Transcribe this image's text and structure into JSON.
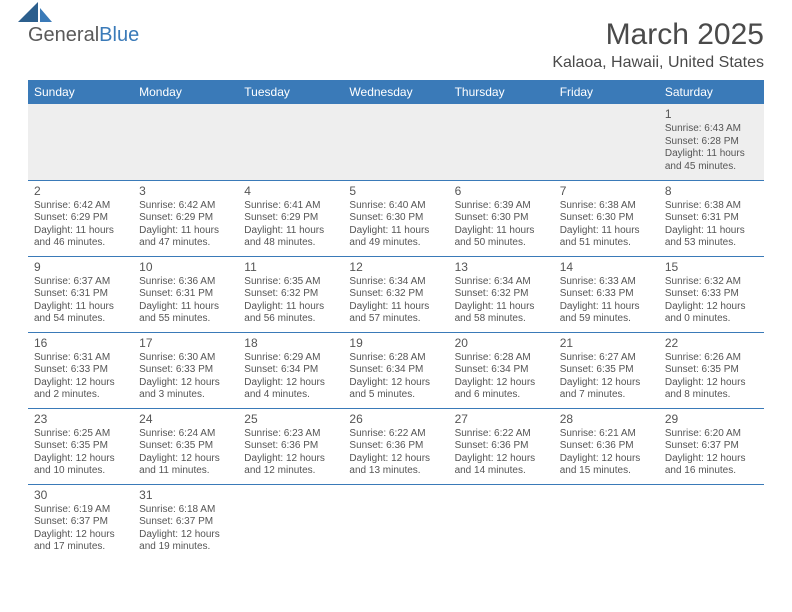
{
  "brand": {
    "part1": "General",
    "part2": "Blue"
  },
  "title": "March 2025",
  "location": "Kalaoa, Hawaii, United States",
  "colors": {
    "header_bg": "#3a7ab8",
    "header_text": "#ffffff",
    "cell_text": "#555555",
    "empty_bg": "#eeeeee",
    "border": "#3a7ab8",
    "title_text": "#4a4a4a"
  },
  "day_headers": [
    "Sunday",
    "Monday",
    "Tuesday",
    "Wednesday",
    "Thursday",
    "Friday",
    "Saturday"
  ],
  "weeks": [
    [
      null,
      null,
      null,
      null,
      null,
      null,
      {
        "n": "1",
        "sr": "Sunrise: 6:43 AM",
        "ss": "Sunset: 6:28 PM",
        "dl": "Daylight: 11 hours and 45 minutes."
      }
    ],
    [
      {
        "n": "2",
        "sr": "Sunrise: 6:42 AM",
        "ss": "Sunset: 6:29 PM",
        "dl": "Daylight: 11 hours and 46 minutes."
      },
      {
        "n": "3",
        "sr": "Sunrise: 6:42 AM",
        "ss": "Sunset: 6:29 PM",
        "dl": "Daylight: 11 hours and 47 minutes."
      },
      {
        "n": "4",
        "sr": "Sunrise: 6:41 AM",
        "ss": "Sunset: 6:29 PM",
        "dl": "Daylight: 11 hours and 48 minutes."
      },
      {
        "n": "5",
        "sr": "Sunrise: 6:40 AM",
        "ss": "Sunset: 6:30 PM",
        "dl": "Daylight: 11 hours and 49 minutes."
      },
      {
        "n": "6",
        "sr": "Sunrise: 6:39 AM",
        "ss": "Sunset: 6:30 PM",
        "dl": "Daylight: 11 hours and 50 minutes."
      },
      {
        "n": "7",
        "sr": "Sunrise: 6:38 AM",
        "ss": "Sunset: 6:30 PM",
        "dl": "Daylight: 11 hours and 51 minutes."
      },
      {
        "n": "8",
        "sr": "Sunrise: 6:38 AM",
        "ss": "Sunset: 6:31 PM",
        "dl": "Daylight: 11 hours and 53 minutes."
      }
    ],
    [
      {
        "n": "9",
        "sr": "Sunrise: 6:37 AM",
        "ss": "Sunset: 6:31 PM",
        "dl": "Daylight: 11 hours and 54 minutes."
      },
      {
        "n": "10",
        "sr": "Sunrise: 6:36 AM",
        "ss": "Sunset: 6:31 PM",
        "dl": "Daylight: 11 hours and 55 minutes."
      },
      {
        "n": "11",
        "sr": "Sunrise: 6:35 AM",
        "ss": "Sunset: 6:32 PM",
        "dl": "Daylight: 11 hours and 56 minutes."
      },
      {
        "n": "12",
        "sr": "Sunrise: 6:34 AM",
        "ss": "Sunset: 6:32 PM",
        "dl": "Daylight: 11 hours and 57 minutes."
      },
      {
        "n": "13",
        "sr": "Sunrise: 6:34 AM",
        "ss": "Sunset: 6:32 PM",
        "dl": "Daylight: 11 hours and 58 minutes."
      },
      {
        "n": "14",
        "sr": "Sunrise: 6:33 AM",
        "ss": "Sunset: 6:33 PM",
        "dl": "Daylight: 11 hours and 59 minutes."
      },
      {
        "n": "15",
        "sr": "Sunrise: 6:32 AM",
        "ss": "Sunset: 6:33 PM",
        "dl": "Daylight: 12 hours and 0 minutes."
      }
    ],
    [
      {
        "n": "16",
        "sr": "Sunrise: 6:31 AM",
        "ss": "Sunset: 6:33 PM",
        "dl": "Daylight: 12 hours and 2 minutes."
      },
      {
        "n": "17",
        "sr": "Sunrise: 6:30 AM",
        "ss": "Sunset: 6:33 PM",
        "dl": "Daylight: 12 hours and 3 minutes."
      },
      {
        "n": "18",
        "sr": "Sunrise: 6:29 AM",
        "ss": "Sunset: 6:34 PM",
        "dl": "Daylight: 12 hours and 4 minutes."
      },
      {
        "n": "19",
        "sr": "Sunrise: 6:28 AM",
        "ss": "Sunset: 6:34 PM",
        "dl": "Daylight: 12 hours and 5 minutes."
      },
      {
        "n": "20",
        "sr": "Sunrise: 6:28 AM",
        "ss": "Sunset: 6:34 PM",
        "dl": "Daylight: 12 hours and 6 minutes."
      },
      {
        "n": "21",
        "sr": "Sunrise: 6:27 AM",
        "ss": "Sunset: 6:35 PM",
        "dl": "Daylight: 12 hours and 7 minutes."
      },
      {
        "n": "22",
        "sr": "Sunrise: 6:26 AM",
        "ss": "Sunset: 6:35 PM",
        "dl": "Daylight: 12 hours and 8 minutes."
      }
    ],
    [
      {
        "n": "23",
        "sr": "Sunrise: 6:25 AM",
        "ss": "Sunset: 6:35 PM",
        "dl": "Daylight: 12 hours and 10 minutes."
      },
      {
        "n": "24",
        "sr": "Sunrise: 6:24 AM",
        "ss": "Sunset: 6:35 PM",
        "dl": "Daylight: 12 hours and 11 minutes."
      },
      {
        "n": "25",
        "sr": "Sunrise: 6:23 AM",
        "ss": "Sunset: 6:36 PM",
        "dl": "Daylight: 12 hours and 12 minutes."
      },
      {
        "n": "26",
        "sr": "Sunrise: 6:22 AM",
        "ss": "Sunset: 6:36 PM",
        "dl": "Daylight: 12 hours and 13 minutes."
      },
      {
        "n": "27",
        "sr": "Sunrise: 6:22 AM",
        "ss": "Sunset: 6:36 PM",
        "dl": "Daylight: 12 hours and 14 minutes."
      },
      {
        "n": "28",
        "sr": "Sunrise: 6:21 AM",
        "ss": "Sunset: 6:36 PM",
        "dl": "Daylight: 12 hours and 15 minutes."
      },
      {
        "n": "29",
        "sr": "Sunrise: 6:20 AM",
        "ss": "Sunset: 6:37 PM",
        "dl": "Daylight: 12 hours and 16 minutes."
      }
    ],
    [
      {
        "n": "30",
        "sr": "Sunrise: 6:19 AM",
        "ss": "Sunset: 6:37 PM",
        "dl": "Daylight: 12 hours and 17 minutes."
      },
      {
        "n": "31",
        "sr": "Sunrise: 6:18 AM",
        "ss": "Sunset: 6:37 PM",
        "dl": "Daylight: 12 hours and 19 minutes."
      },
      null,
      null,
      null,
      null,
      null
    ]
  ]
}
